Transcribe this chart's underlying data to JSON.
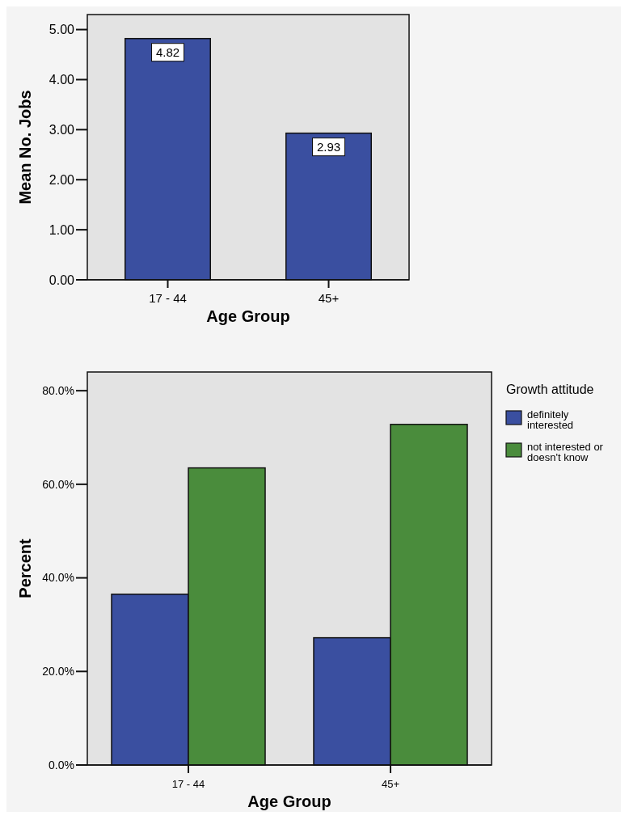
{
  "chart_data": [
    {
      "type": "bar",
      "xlabel": "Age Group",
      "ylabel": "Mean No. Jobs",
      "categories": [
        "17 - 44",
        "45+"
      ],
      "values": [
        4.82,
        2.93
      ],
      "color": "#3a4fa0",
      "ylim": [
        0,
        5.3
      ],
      "yticks": [
        {
          "value": 0,
          "label": "0.00"
        },
        {
          "value": 1,
          "label": "1.00"
        },
        {
          "value": 2,
          "label": "2.00"
        },
        {
          "value": 3,
          "label": "3.00"
        },
        {
          "value": 4,
          "label": "4.00"
        },
        {
          "value": 5,
          "label": "5.00"
        }
      ],
      "data_labels": true,
      "grid": false,
      "legend": false
    },
    {
      "type": "bar",
      "xlabel": "Age Group",
      "ylabel": "Percent",
      "legend_title": "Growth attitude",
      "categories": [
        "17 - 44",
        "45+"
      ],
      "series": [
        {
          "name": "definitely interested",
          "color": "#3a4fa0",
          "values": [
            36.5,
            27.2
          ]
        },
        {
          "name": "not interested or doesn't know",
          "color": "#4a8c3c",
          "values": [
            63.5,
            72.8
          ]
        }
      ],
      "ylim": [
        0,
        84
      ],
      "yticks": [
        {
          "value": 0,
          "label": "0.0%"
        },
        {
          "value": 20,
          "label": "20.0%"
        },
        {
          "value": 40,
          "label": "40.0%"
        },
        {
          "value": 60,
          "label": "60.0%"
        },
        {
          "value": 80,
          "label": "80.0%"
        }
      ],
      "grid": false,
      "legend": "right"
    }
  ]
}
